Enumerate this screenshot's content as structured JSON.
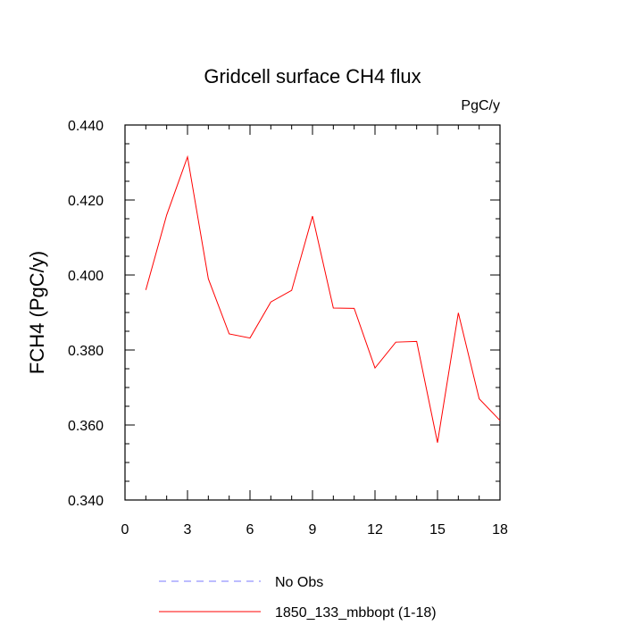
{
  "chart_data": {
    "type": "line",
    "title": "Gridcell surface CH4 flux",
    "units_label": "PgC/y",
    "ylabel": "FCH4  (PgC/y)",
    "xlabel": "",
    "xlim": [
      0,
      18
    ],
    "ylim": [
      0.34,
      0.44
    ],
    "x_ticks": [
      0,
      3,
      6,
      9,
      12,
      15,
      18
    ],
    "x_tick_labels": [
      "0",
      "3",
      "6",
      "9",
      "12",
      "15",
      "18"
    ],
    "y_ticks": [
      0.34,
      0.36,
      0.38,
      0.4,
      0.42,
      0.44
    ],
    "y_tick_labels": [
      "0.340",
      "0.360",
      "0.380",
      "0.400",
      "0.420",
      "0.440"
    ],
    "grid": false,
    "legend_position": "bottom",
    "legend": [
      {
        "name": "No Obs",
        "color": "#7a7aff",
        "style": "dashed"
      },
      {
        "name": "1850_133_mbbopt (1-18)",
        "color": "#ff0000",
        "style": "solid"
      }
    ],
    "series": [
      {
        "name": "1850_133_mbbopt (1-18)",
        "color": "#ff0000",
        "x": [
          1,
          2,
          3,
          4,
          5,
          6,
          7,
          8,
          9,
          10,
          11,
          12,
          13,
          14,
          15,
          16,
          17,
          18
        ],
        "values": [
          0.396,
          0.416,
          0.4315,
          0.399,
          0.3843,
          0.3832,
          0.3928,
          0.3959,
          0.4157,
          0.3912,
          0.3911,
          0.3752,
          0.3821,
          0.3823,
          0.3553,
          0.3899,
          0.367,
          0.3612
        ]
      }
    ]
  }
}
